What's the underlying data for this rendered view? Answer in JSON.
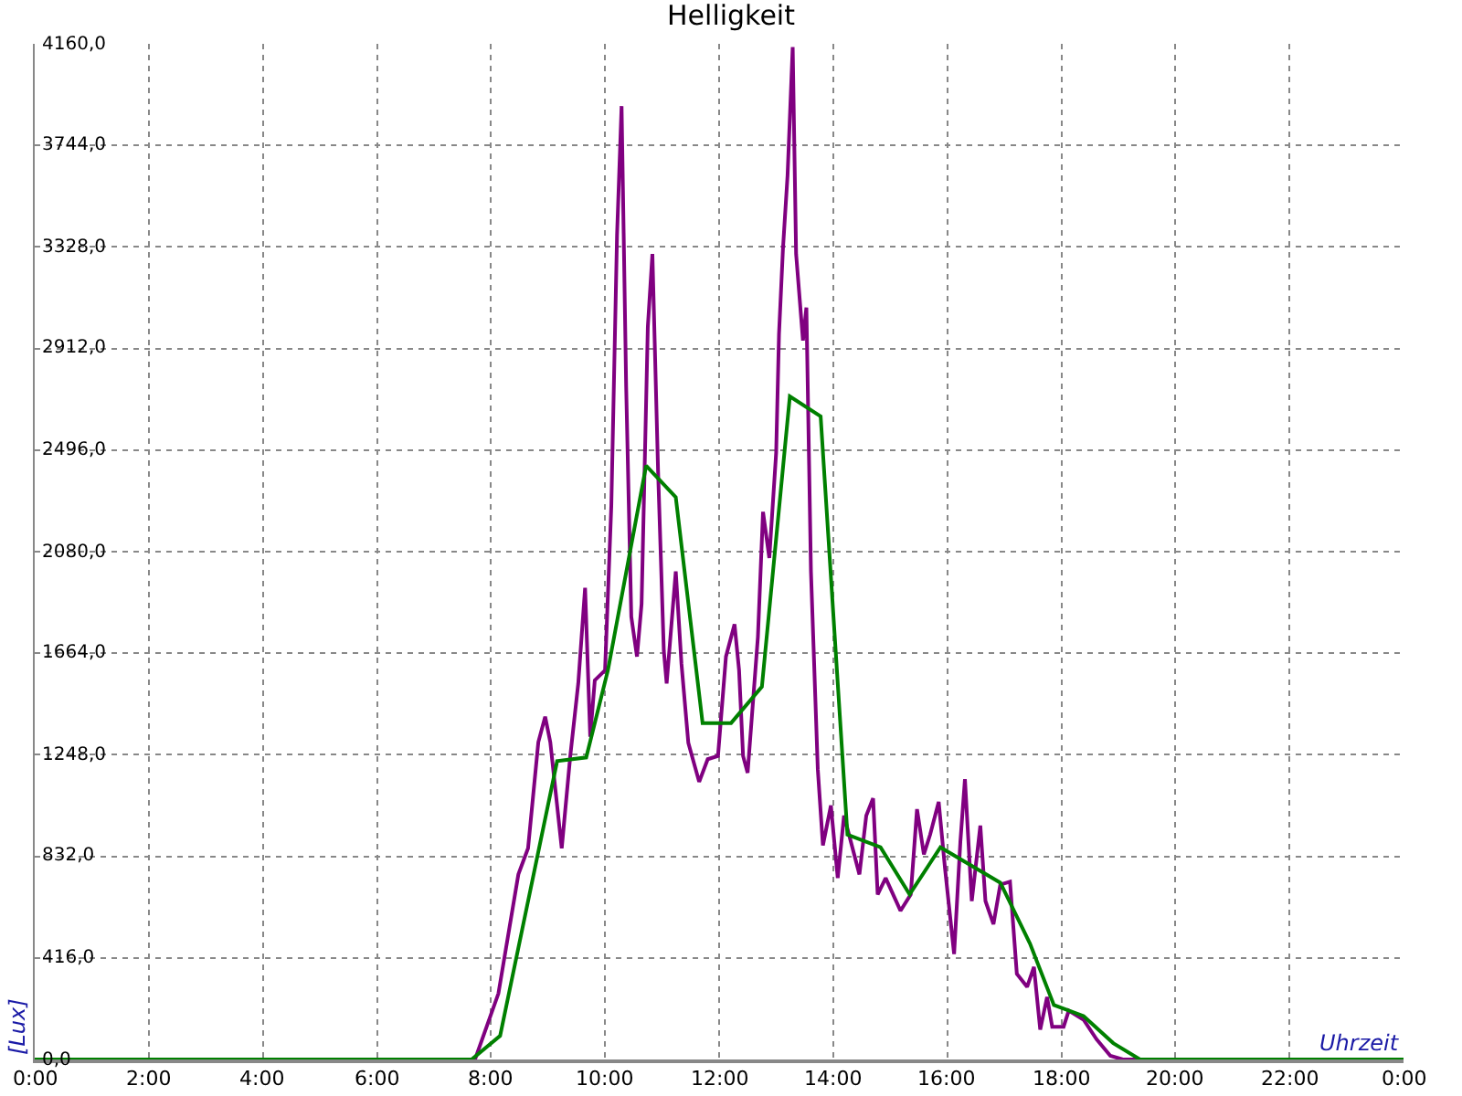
{
  "chart_data": {
    "type": "line",
    "title": "Helligkeit",
    "xlabel": "Uhrzeit",
    "ylabel": "[Lux]",
    "xlim": [
      0,
      24
    ],
    "xticks": [
      {
        "value": 0,
        "label": "0:00"
      },
      {
        "value": 2,
        "label": "2:00"
      },
      {
        "value": 4,
        "label": "4:00"
      },
      {
        "value": 6,
        "label": "6:00"
      },
      {
        "value": 8,
        "label": "8:00"
      },
      {
        "value": 10,
        "label": "10:00"
      },
      {
        "value": 12,
        "label": "12:00"
      },
      {
        "value": 14,
        "label": "14:00"
      },
      {
        "value": 16,
        "label": "16:00"
      },
      {
        "value": 18,
        "label": "18:00"
      },
      {
        "value": 20,
        "label": "20:00"
      },
      {
        "value": 22,
        "label": "22:00"
      },
      {
        "value": 24,
        "label": "0:00"
      }
    ],
    "ylim": [
      0,
      4160
    ],
    "yticks": [
      {
        "value": 0,
        "label": "0,0"
      },
      {
        "value": 416,
        "label": "416,0"
      },
      {
        "value": 832,
        "label": "832,0"
      },
      {
        "value": 1248,
        "label": "1248,0"
      },
      {
        "value": 1664,
        "label": "1664,0"
      },
      {
        "value": 2080,
        "label": "2080,0"
      },
      {
        "value": 2496,
        "label": "2496,0"
      },
      {
        "value": 2912,
        "label": "2912,0"
      },
      {
        "value": 3328,
        "label": "3328,0"
      },
      {
        "value": 3744,
        "label": "3744,0"
      },
      {
        "value": 4160,
        "label": "4160,0"
      }
    ],
    "grid": true,
    "marker": "none",
    "line_style": "solid",
    "series": [
      {
        "color": "#800080",
        "x": [
          0,
          7.72,
          8.13,
          8.48,
          8.65,
          8.83,
          8.95,
          9.04,
          9.24,
          9.39,
          9.53,
          9.65,
          9.74,
          9.82,
          10.0,
          10.11,
          10.21,
          10.29,
          10.37,
          10.46,
          10.56,
          10.64,
          10.75,
          10.83,
          10.93,
          11.03,
          11.08,
          11.24,
          11.34,
          11.46,
          11.65,
          11.8,
          11.98,
          12.12,
          12.27,
          12.35,
          12.42,
          12.5,
          12.68,
          12.77,
          12.88,
          13.0,
          13.05,
          13.12,
          13.2,
          13.29,
          13.35,
          13.47,
          13.53,
          13.61,
          13.73,
          13.82,
          13.96,
          14.08,
          14.19,
          14.46,
          14.58,
          14.7,
          14.78,
          14.92,
          15.18,
          15.36,
          15.47,
          15.59,
          15.7,
          15.85,
          15.96,
          16.12,
          16.23,
          16.31,
          16.43,
          16.58,
          16.67,
          16.81,
          16.93,
          17.1,
          17.22,
          17.4,
          17.52,
          17.63,
          17.75,
          17.84,
          18.04,
          18.13,
          18.39,
          18.62,
          18.86,
          19.08,
          24
        ],
        "values": [
          0,
          0,
          270,
          758,
          865,
          1300,
          1404,
          1300,
          865,
          1243,
          1540,
          1932,
          1322,
          1553,
          1594,
          2270,
          3377,
          3905,
          2757,
          1813,
          1650,
          1865,
          3002,
          3299,
          2407,
          1675,
          1540,
          1999,
          1620,
          1297,
          1137,
          1230,
          1243,
          1650,
          1783,
          1594,
          1243,
          1174,
          1731,
          2243,
          2054,
          2485,
          2972,
          3323,
          3621,
          4147,
          3299,
          2945,
          3080,
          1999,
          1189,
          877,
          1040,
          743,
          999,
          758,
          999,
          1070,
          676,
          743,
          609,
          676,
          1025,
          840,
          921,
          1055,
          784,
          432,
          892,
          1148,
          649,
          958,
          649,
          554,
          716,
          728,
          351,
          297,
          379,
          122,
          256,
          134,
          134,
          200,
          163,
          82,
          15,
          0,
          0
        ]
      },
      {
        "color": "#008000",
        "x": [
          0,
          7.66,
          8.16,
          9.16,
          9.67,
          10.05,
          10.72,
          11.24,
          11.71,
          12.21,
          12.75,
          13.24,
          13.78,
          14.25,
          14.83,
          15.34,
          15.88,
          16.93,
          17.45,
          17.87,
          18.39,
          18.91,
          19.38,
          24
        ],
        "values": [
          0,
          0,
          97,
          1222,
          1237,
          1594,
          2432,
          2303,
          1378,
          1378,
          1527,
          2716,
          2634,
          921,
          869,
          676,
          869,
          724,
          475,
          223,
          178,
          67,
          0,
          0
        ]
      }
    ]
  }
}
